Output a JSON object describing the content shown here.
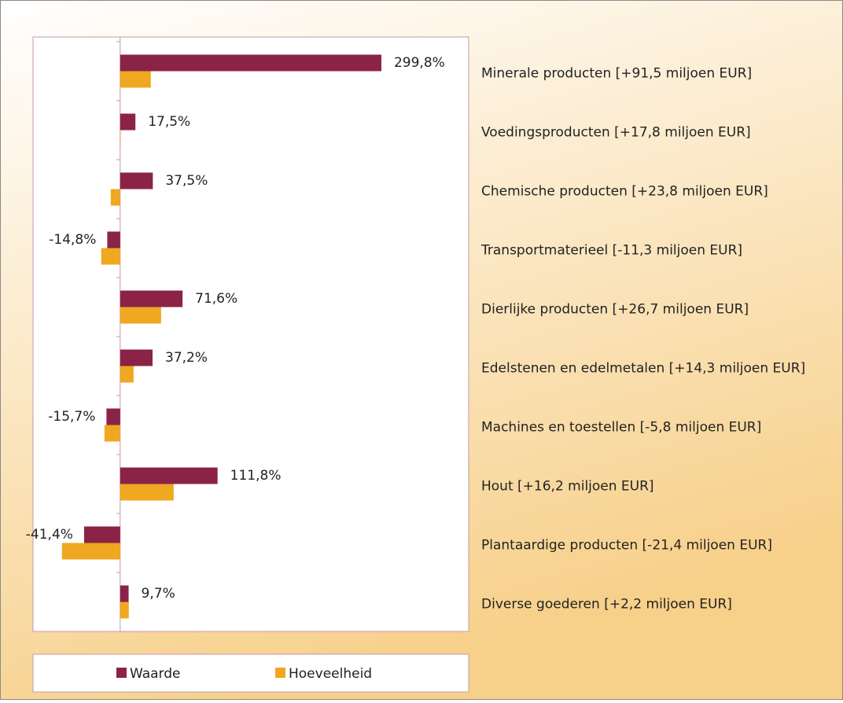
{
  "chart_data": {
    "type": "bar",
    "orientation": "horizontal",
    "categories": [
      "Minerale producten [+91,5 miljoen EUR]",
      "Voedingsproducten [+17,8 miljoen EUR]",
      "Chemische producten [+23,8 miljoen EUR]",
      "Transportmaterieel [-11,3 miljoen EUR]",
      "Dierlijke producten [+26,7 miljoen EUR]",
      "Edelstenen en edelmetalen [+14,3 miljoen EUR]",
      "Machines en toestellen [-5,8 miljoen EUR]",
      "Hout [+16,2 miljoen EUR]",
      "Plantaardige producten [-21,4 miljoen EUR]",
      "Diverse goederen [+2,2 miljoen EUR]"
    ],
    "series": [
      {
        "name": "Waarde",
        "color": "#8b2346",
        "values": [
          299.8,
          17.5,
          37.5,
          -14.8,
          71.6,
          37.2,
          -15.7,
          111.8,
          -41.4,
          9.7
        ],
        "value_labels": [
          "299,8%",
          "17,5%",
          "37,5%",
          "-14,8%",
          "71,6%",
          "37,2%",
          "-15,7%",
          "111,8%",
          "-41,4%",
          "9,7%"
        ]
      },
      {
        "name": "Hoeveelheid",
        "color": "#f0a820",
        "values": [
          35.2,
          0.5,
          -10.8,
          -21.7,
          47,
          15.4,
          -18,
          61.4,
          -66.8,
          9.9
        ]
      }
    ],
    "xlim": [
      -100,
      400
    ],
    "legend": "bottom"
  }
}
